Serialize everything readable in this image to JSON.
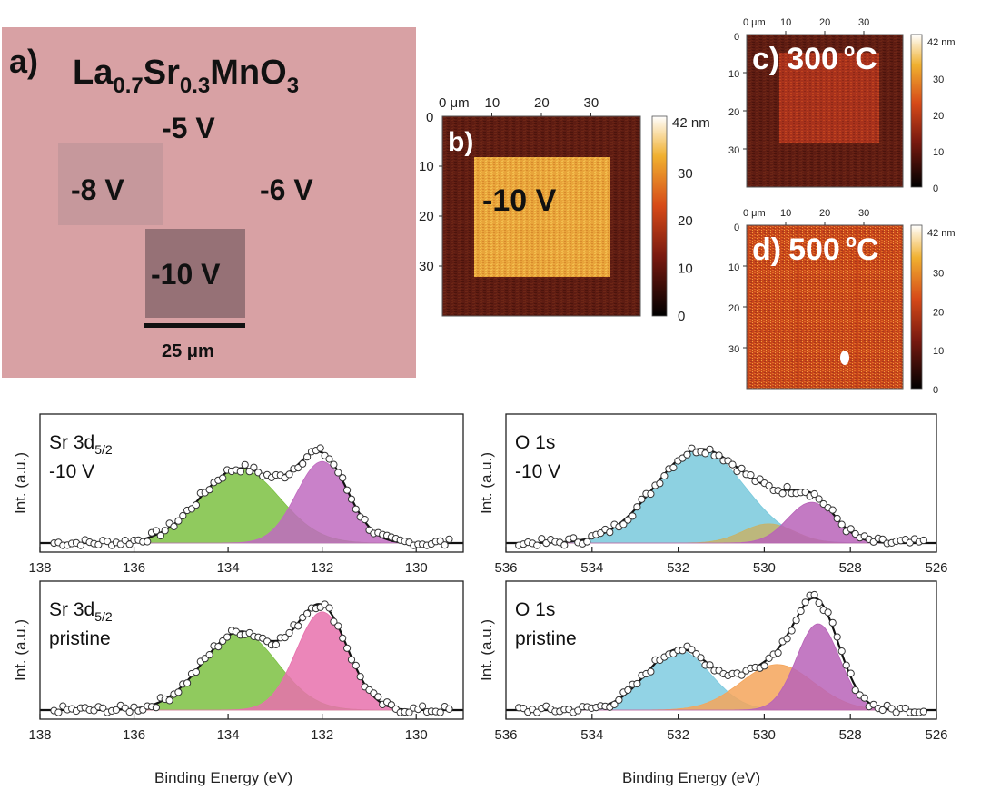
{
  "panel_a": {
    "letter": "a)",
    "formula": {
      "p1": "La",
      "s1": "0.7",
      "p2": "Sr",
      "s2": "0.3",
      "p3": "MnO",
      "s3": "3"
    },
    "voltages": [
      "-5 V",
      "-8 V",
      "-6 V",
      "-10 V"
    ],
    "scalebar": "25 μm",
    "colors": {
      "background": "#d8a1a4",
      "square_light": "#c4989c",
      "square_dark": "#957074"
    }
  },
  "afm": {
    "axis_unit": "0 μm",
    "ticks": [
      "10",
      "20",
      "30"
    ],
    "colorbar_unit": "42 nm",
    "colorbar_ticks": [
      "30",
      "20",
      "10",
      "0"
    ],
    "panels": [
      {
        "id": "b",
        "label": "b)",
        "temp_value": "",
        "temp_unit": "",
        "inner_label": "-10 V"
      },
      {
        "id": "c",
        "label": "c)",
        "temp_value": "300",
        "temp_unit": "C",
        "inner_label": ""
      },
      {
        "id": "d",
        "label": "d)",
        "temp_value": "500",
        "temp_unit": "C",
        "inner_label": ""
      }
    ],
    "degree_symbol": "o",
    "colors": {
      "dark": "#5a1a10",
      "bright": "#e89a2a"
    }
  },
  "chart_data": [
    {
      "type": "line",
      "panel": "Sr 3d5/2 -10 V",
      "label_main": "Sr 3d",
      "label_sub": "5/2",
      "label_line2": "-10 V",
      "ylabel": "Int. (a.u.)",
      "xlabel": "",
      "xlim": [
        138,
        129
      ],
      "ticks": [
        138,
        136,
        134,
        132,
        130
      ],
      "series": [
        {
          "color": "#7cc142",
          "values": [
            {
              "center": 133.75,
              "amplitude": 0.62,
              "width": 0.85
            }
          ]
        },
        {
          "color": "#c06bc0",
          "values": [
            {
              "center": 132.0,
              "amplitude": 0.68,
              "width": 0.55
            }
          ]
        }
      ]
    },
    {
      "type": "line",
      "panel": "O 1s -10 V",
      "label_main": "O 1s",
      "label_sub": "",
      "label_line2": "-10 V",
      "ylabel": "Int. (a.u.)",
      "xlabel": "",
      "xlim": [
        536,
        526
      ],
      "ticks": [
        536,
        534,
        532,
        530,
        528,
        526
      ],
      "series": [
        {
          "color": "#79c9dc",
          "values": [
            {
              "center": 531.5,
              "amplitude": 0.78,
              "width": 1.05
            }
          ]
        },
        {
          "color": "#c6b36a",
          "values": [
            {
              "center": 529.9,
              "amplitude": 0.16,
              "width": 0.6
            }
          ]
        },
        {
          "color": "#b863b8",
          "values": [
            {
              "center": 528.9,
              "amplitude": 0.34,
              "width": 0.55
            }
          ]
        }
      ]
    },
    {
      "type": "line",
      "panel": "Sr 3d5/2 pristine",
      "label_main": "Sr 3d",
      "label_sub": "5/2",
      "label_line2": "pristine",
      "ylabel": "Int. (a.u.)",
      "xlabel": "Binding Energy (eV)",
      "xlim": [
        138,
        129
      ],
      "ticks": [
        138,
        136,
        134,
        132,
        130
      ],
      "series": [
        {
          "color": "#7cc142",
          "values": [
            {
              "center": 133.75,
              "amplitude": 0.65,
              "width": 0.8
            }
          ]
        },
        {
          "color": "#e771ad",
          "values": [
            {
              "center": 132.0,
              "amplitude": 0.82,
              "width": 0.55
            }
          ]
        }
      ]
    },
    {
      "type": "line",
      "panel": "O 1s pristine",
      "label_main": "O 1s",
      "label_sub": "",
      "label_line2": "pristine",
      "ylabel": "Int. (a.u.)",
      "xlabel": "Binding Energy (eV)",
      "xlim": [
        536,
        526
      ],
      "ticks": [
        536,
        534,
        532,
        530,
        528,
        526
      ],
      "series": [
        {
          "color": "#7fcbe0",
          "values": [
            {
              "center": 532.0,
              "amplitude": 0.5,
              "width": 0.75
            }
          ]
        },
        {
          "color": "#f5a55a",
          "values": [
            {
              "center": 529.7,
              "amplitude": 0.38,
              "width": 0.85
            }
          ]
        },
        {
          "color": "#b863b8",
          "values": [
            {
              "center": 528.75,
              "amplitude": 0.72,
              "width": 0.5
            }
          ]
        }
      ]
    }
  ]
}
